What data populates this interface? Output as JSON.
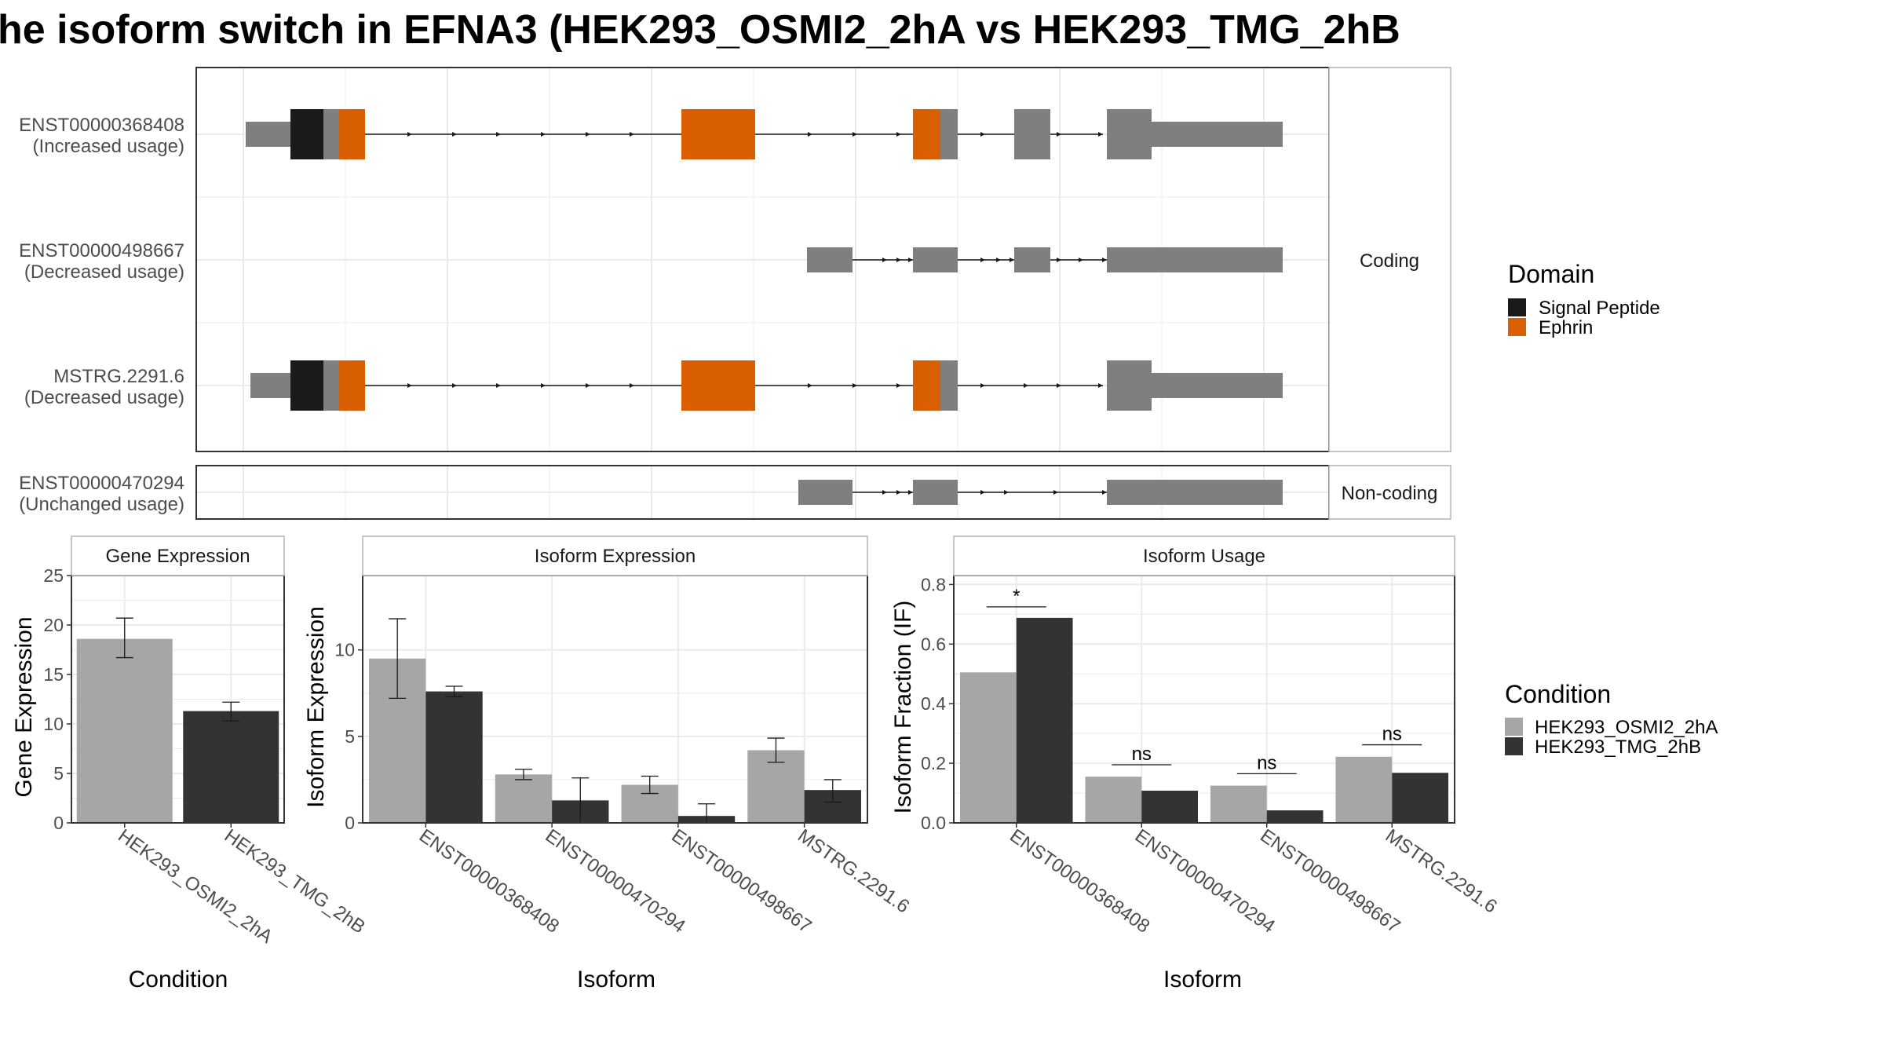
{
  "title": "he isoform switch in EFNA3 (HEK293_OSMI2_2hA vs HEK293_TMG_2hB",
  "colors": {
    "signal_peptide": "#1a1a1a",
    "ephrin": "#d95f02",
    "exon": "#7f7f7f",
    "cond_a": "#a6a6a6",
    "cond_b": "#333333",
    "grid": "#ebebeb",
    "strip_border": "#b3b3b3",
    "panel_border": "#333333"
  },
  "structure": {
    "facets": [
      "Coding",
      "Non-coding"
    ],
    "domain_legend": {
      "title": "Domain",
      "items": [
        "Signal Peptide",
        "Ephrin"
      ]
    },
    "tracks": [
      {
        "id": "ENST00000368408",
        "label_line1": "ENST00000368408",
        "label_line2": "(Increased usage)",
        "facet": 0
      },
      {
        "id": "ENST00000498667",
        "label_line1": "ENST00000498667",
        "label_line2": "(Decreased usage)",
        "facet": 0
      },
      {
        "id": "MSTRG.2291.6",
        "label_line1": "MSTRG.2291.6",
        "label_line2": "(Decreased usage)",
        "facet": 0
      },
      {
        "id": "ENST00000470294",
        "label_line1": "ENST00000470294",
        "label_line2": "(Unchanged usage)",
        "facet": 1
      }
    ]
  },
  "chart_data": [
    {
      "type": "bar",
      "title": "Gene Expression",
      "xlabel": "Condition",
      "ylabel": "Gene Expression",
      "ylim": [
        0,
        25
      ],
      "yticks": [
        0,
        5,
        10,
        15,
        20,
        25
      ],
      "categories": [
        "HEK293_OSMI2_2hA",
        "HEK293_TMG_2hB"
      ],
      "series": [
        {
          "values": [
            18.6,
            11.3
          ],
          "err_low": [
            16.7,
            10.3
          ],
          "err_high": [
            20.7,
            12.2
          ]
        }
      ]
    },
    {
      "type": "bar",
      "title": "Isoform Expression",
      "xlabel": "Isoform",
      "ylabel": "Isoform Expression",
      "ylim": [
        0,
        14.3
      ],
      "yticks": [
        0,
        5,
        10
      ],
      "categories": [
        "ENST00000368408",
        "ENST00000470294",
        "ENST00000498667",
        "MSTRG.2291.6"
      ],
      "series": [
        {
          "name": "HEK293_OSMI2_2hA",
          "values": [
            9.5,
            2.8,
            2.2,
            4.2
          ],
          "err_low": [
            7.2,
            2.5,
            1.7,
            3.5
          ],
          "err_high": [
            11.8,
            3.1,
            2.7,
            4.9
          ]
        },
        {
          "name": "HEK293_TMG_2hB",
          "values": [
            7.6,
            1.3,
            0.4,
            1.9
          ],
          "err_low": [
            7.3,
            0.0,
            0.0,
            1.2
          ],
          "err_high": [
            7.9,
            2.6,
            1.1,
            2.5
          ]
        }
      ]
    },
    {
      "type": "bar",
      "title": "Isoform Usage",
      "xlabel": "Isoform",
      "ylabel": "Isoform Fraction (IF)",
      "ylim": [
        0,
        0.83
      ],
      "yticks": [
        0.0,
        0.2,
        0.4,
        0.6,
        0.8
      ],
      "ytick_labels": [
        "0.0",
        "0.2",
        "0.4",
        "0.6",
        "0.8"
      ],
      "categories": [
        "ENST00000368408",
        "ENST00000470294",
        "ENST00000498667",
        "MSTRG.2291.6"
      ],
      "series": [
        {
          "name": "HEK293_OSMI2_2hA",
          "values": [
            0.505,
            0.155,
            0.125,
            0.222
          ]
        },
        {
          "name": "HEK293_TMG_2hB",
          "values": [
            0.688,
            0.108,
            0.042,
            0.168
          ]
        }
      ],
      "significance": [
        "*",
        "ns",
        "ns",
        "ns"
      ]
    }
  ],
  "condition_legend": {
    "title": "Condition",
    "items": [
      "HEK293_OSMI2_2hA",
      "HEK293_TMG_2hB"
    ]
  }
}
